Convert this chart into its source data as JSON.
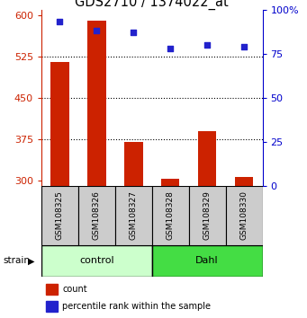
{
  "title": "GDS2710 / 1374022_at",
  "samples": [
    "GSM108325",
    "GSM108326",
    "GSM108327",
    "GSM108328",
    "GSM108329",
    "GSM108330"
  ],
  "red_values": [
    515,
    590,
    370,
    303,
    390,
    306
  ],
  "blue_values": [
    93,
    88,
    87,
    78,
    80,
    79
  ],
  "ylim_left": [
    290,
    610
  ],
  "ylim_right": [
    0,
    100
  ],
  "yticks_left": [
    300,
    375,
    450,
    525,
    600
  ],
  "yticks_right": [
    0,
    25,
    50,
    75,
    100
  ],
  "hlines": [
    375,
    450,
    525
  ],
  "bar_color": "#cc2200",
  "dot_color": "#2222cc",
  "bar_width": 0.5,
  "control_label": "control",
  "dahl_label": "Dahl",
  "strain_label": "strain",
  "legend_count": "count",
  "legend_percentile": "percentile rank within the sample",
  "control_color": "#ccffcc",
  "dahl_color": "#44dd44",
  "sample_box_color": "#cccccc",
  "right_axis_color": "#0000cc",
  "left_axis_color": "#cc2200",
  "tick_fontsize": 8,
  "title_fontsize": 10.5,
  "sample_fontsize": 6.5,
  "group_fontsize": 8,
  "legend_fontsize": 7
}
